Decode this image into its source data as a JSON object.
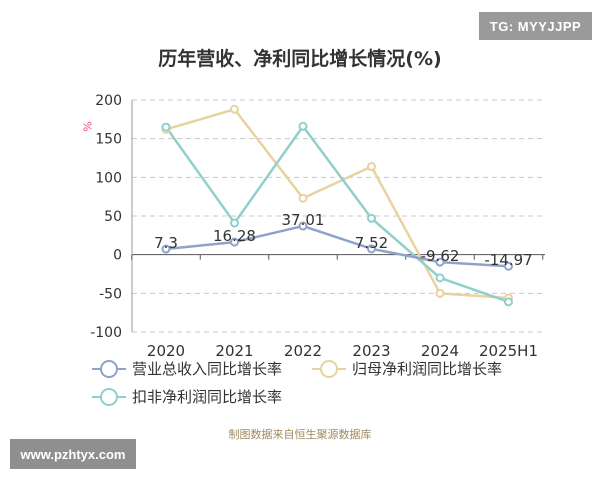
{
  "badge": "TG: MYYJJPP",
  "watermark": "www.pzhtyx.com",
  "source_note": "制图数据来自恒生聚源数据库",
  "chart_data": {
    "type": "line",
    "title": "历年营收、净利同比增长情况(%)",
    "ylabel": "%",
    "xlabel": "",
    "categories": [
      "2020",
      "2021",
      "2022",
      "2023",
      "2024",
      "2025H1"
    ],
    "ylim": [
      -100,
      200
    ],
    "yticks": [
      200,
      150,
      100,
      50,
      0,
      -50,
      -100
    ],
    "grid": true,
    "legend_position": "bottom",
    "series": [
      {
        "name": "营业总收入同比增长率",
        "color": "#8fa3c8",
        "values": [
          7.3,
          16.28,
          37.01,
          7.52,
          -9.62,
          -14.97
        ],
        "labels": [
          "7.3",
          "16.28",
          "37.01",
          "7.52",
          "-9.62",
          "-14.97"
        ]
      },
      {
        "name": "归母净利润同比增长率",
        "color": "#e8d2a0",
        "values": [
          162,
          188,
          73,
          114,
          -50,
          -56
        ],
        "labels": []
      },
      {
        "name": "扣非净利润同比增长率",
        "color": "#8fd0cc",
        "values": [
          165,
          41,
          166,
          47,
          -30,
          -61
        ],
        "labels": []
      }
    ]
  }
}
